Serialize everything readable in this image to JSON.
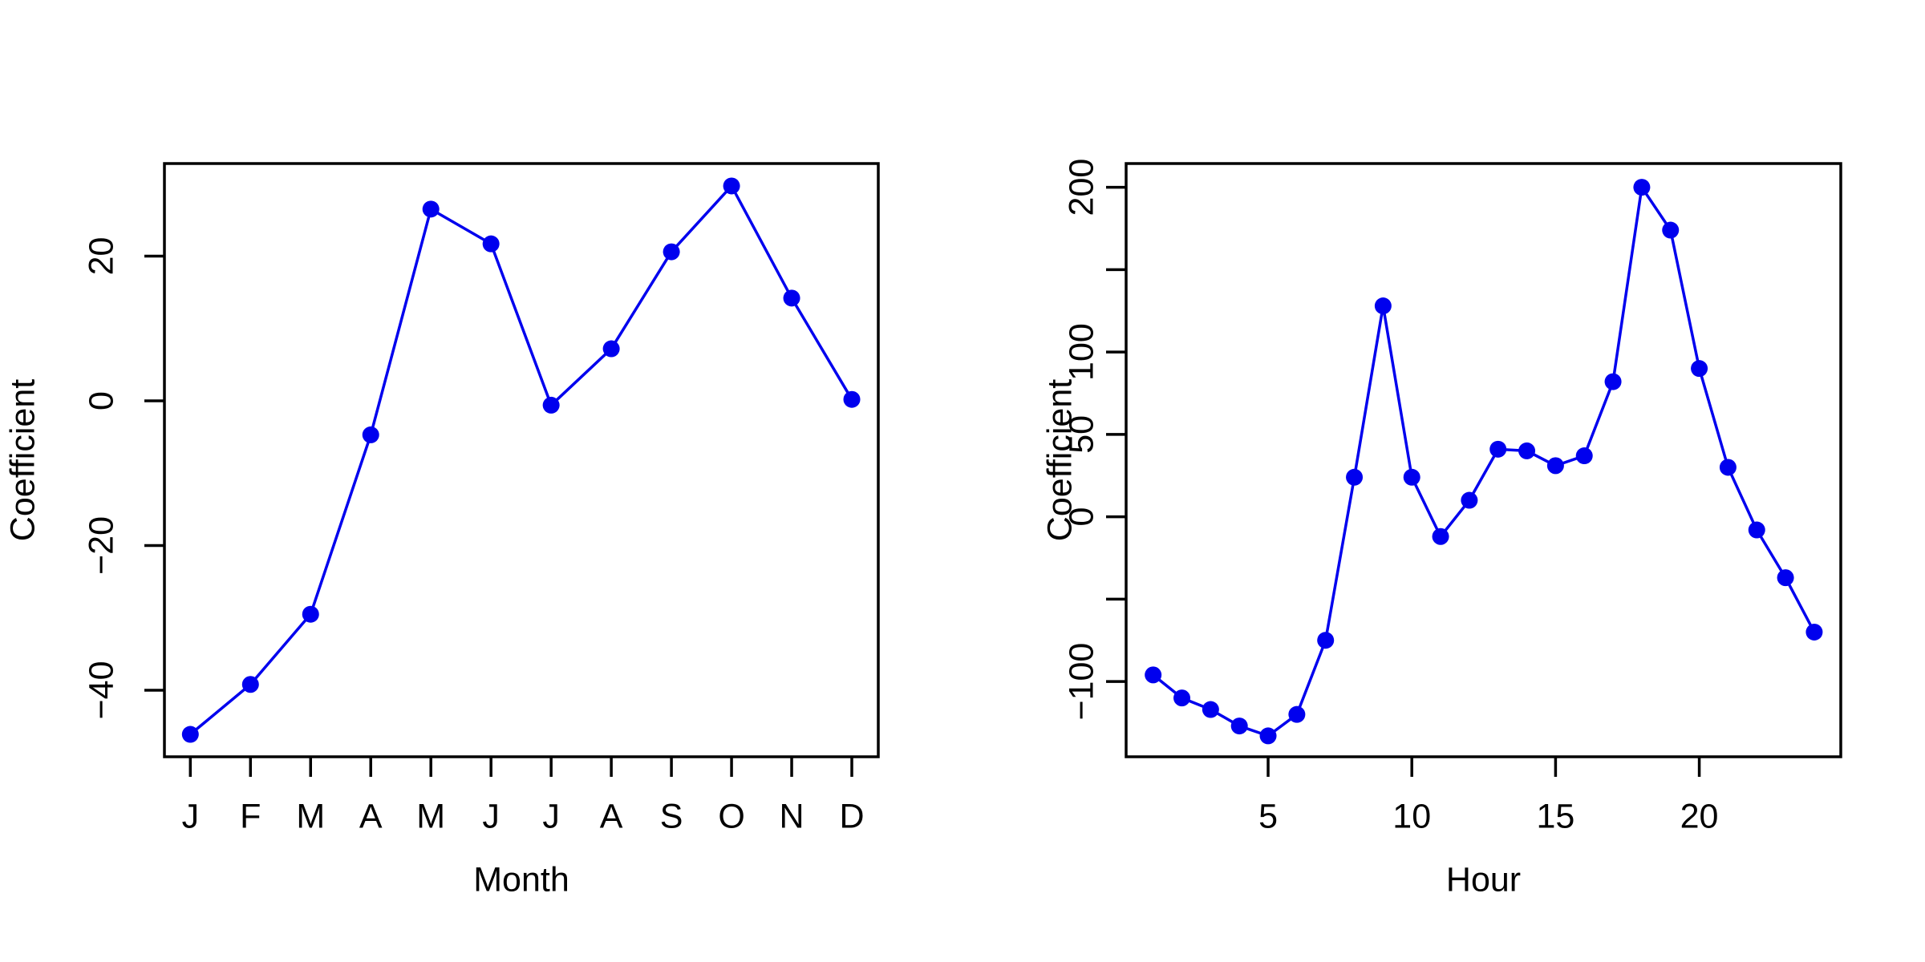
{
  "figure": {
    "background": "#ffffff",
    "description": "Two R base-graphics line plots of fitted coefficients: month effects and hour effects"
  },
  "chart_data": [
    {
      "type": "line",
      "panel": "left",
      "title": "",
      "xlabel": "Month",
      "ylabel": "Coefficient",
      "x": [
        1,
        2,
        3,
        4,
        5,
        6,
        7,
        8,
        9,
        10,
        11,
        12
      ],
      "x_tick_labels": [
        "J",
        "F",
        "M",
        "A",
        "M",
        "J",
        "J",
        "A",
        "S",
        "O",
        "N",
        "D"
      ],
      "values": [
        -46.1,
        -39.2,
        -29.5,
        -4.7,
        26.5,
        21.7,
        -0.6,
        7.2,
        20.6,
        29.7,
        14.2,
        0.2
      ],
      "xticks": [
        {
          "value": 1,
          "label": "J"
        },
        {
          "value": 2,
          "label": "F"
        },
        {
          "value": 3,
          "label": "M"
        },
        {
          "value": 4,
          "label": "A"
        },
        {
          "value": 5,
          "label": "M"
        },
        {
          "value": 6,
          "label": "J"
        },
        {
          "value": 7,
          "label": "J"
        },
        {
          "value": 8,
          "label": "A"
        },
        {
          "value": 9,
          "label": "S"
        },
        {
          "value": 10,
          "label": "O"
        },
        {
          "value": 11,
          "label": "N"
        },
        {
          "value": 12,
          "label": "D"
        }
      ],
      "yticks": [
        {
          "value": -40,
          "label": "−40"
        },
        {
          "value": -20,
          "label": "−20"
        },
        {
          "value": 0,
          "label": "0"
        },
        {
          "value": 20,
          "label": "20"
        }
      ],
      "xlim": [
        0.569,
        12.44
      ],
      "ylim": [
        -49.2,
        32.8
      ],
      "grid": false,
      "legend": "none",
      "line_color": "#0000EE",
      "marker": "filled-circle"
    },
    {
      "type": "line",
      "panel": "right",
      "title": "",
      "xlabel": "Hour",
      "ylabel": "Coefficient",
      "x": [
        1,
        2,
        3,
        4,
        5,
        6,
        7,
        8,
        9,
        10,
        11,
        12,
        13,
        14,
        15,
        16,
        17,
        18,
        19,
        20,
        21,
        22,
        23,
        24
      ],
      "values": [
        -96,
        -110,
        -117,
        -127,
        -133,
        -120,
        -75,
        24,
        128,
        24,
        -12,
        10,
        41,
        40,
        31,
        37,
        82,
        200,
        174,
        90,
        30,
        -8,
        -37,
        -70
      ],
      "xticks": [
        {
          "value": 5,
          "label": "5"
        },
        {
          "value": 10,
          "label": "10"
        },
        {
          "value": 15,
          "label": "15"
        },
        {
          "value": 20,
          "label": "20"
        }
      ],
      "yticks": [
        {
          "value": -100,
          "label": "−100"
        },
        {
          "value": -50,
          "label": ""
        },
        {
          "value": 0,
          "label": "0"
        },
        {
          "value": 50,
          "label": "50"
        },
        {
          "value": 100,
          "label": "100"
        },
        {
          "value": 150,
          "label": ""
        },
        {
          "value": 200,
          "label": "200"
        }
      ],
      "xlim": [
        0.06,
        24.923
      ],
      "ylim": [
        -145.7,
        214.4
      ],
      "grid": false,
      "legend": "none",
      "line_color": "#0000EE",
      "marker": "filled-circle"
    }
  ]
}
